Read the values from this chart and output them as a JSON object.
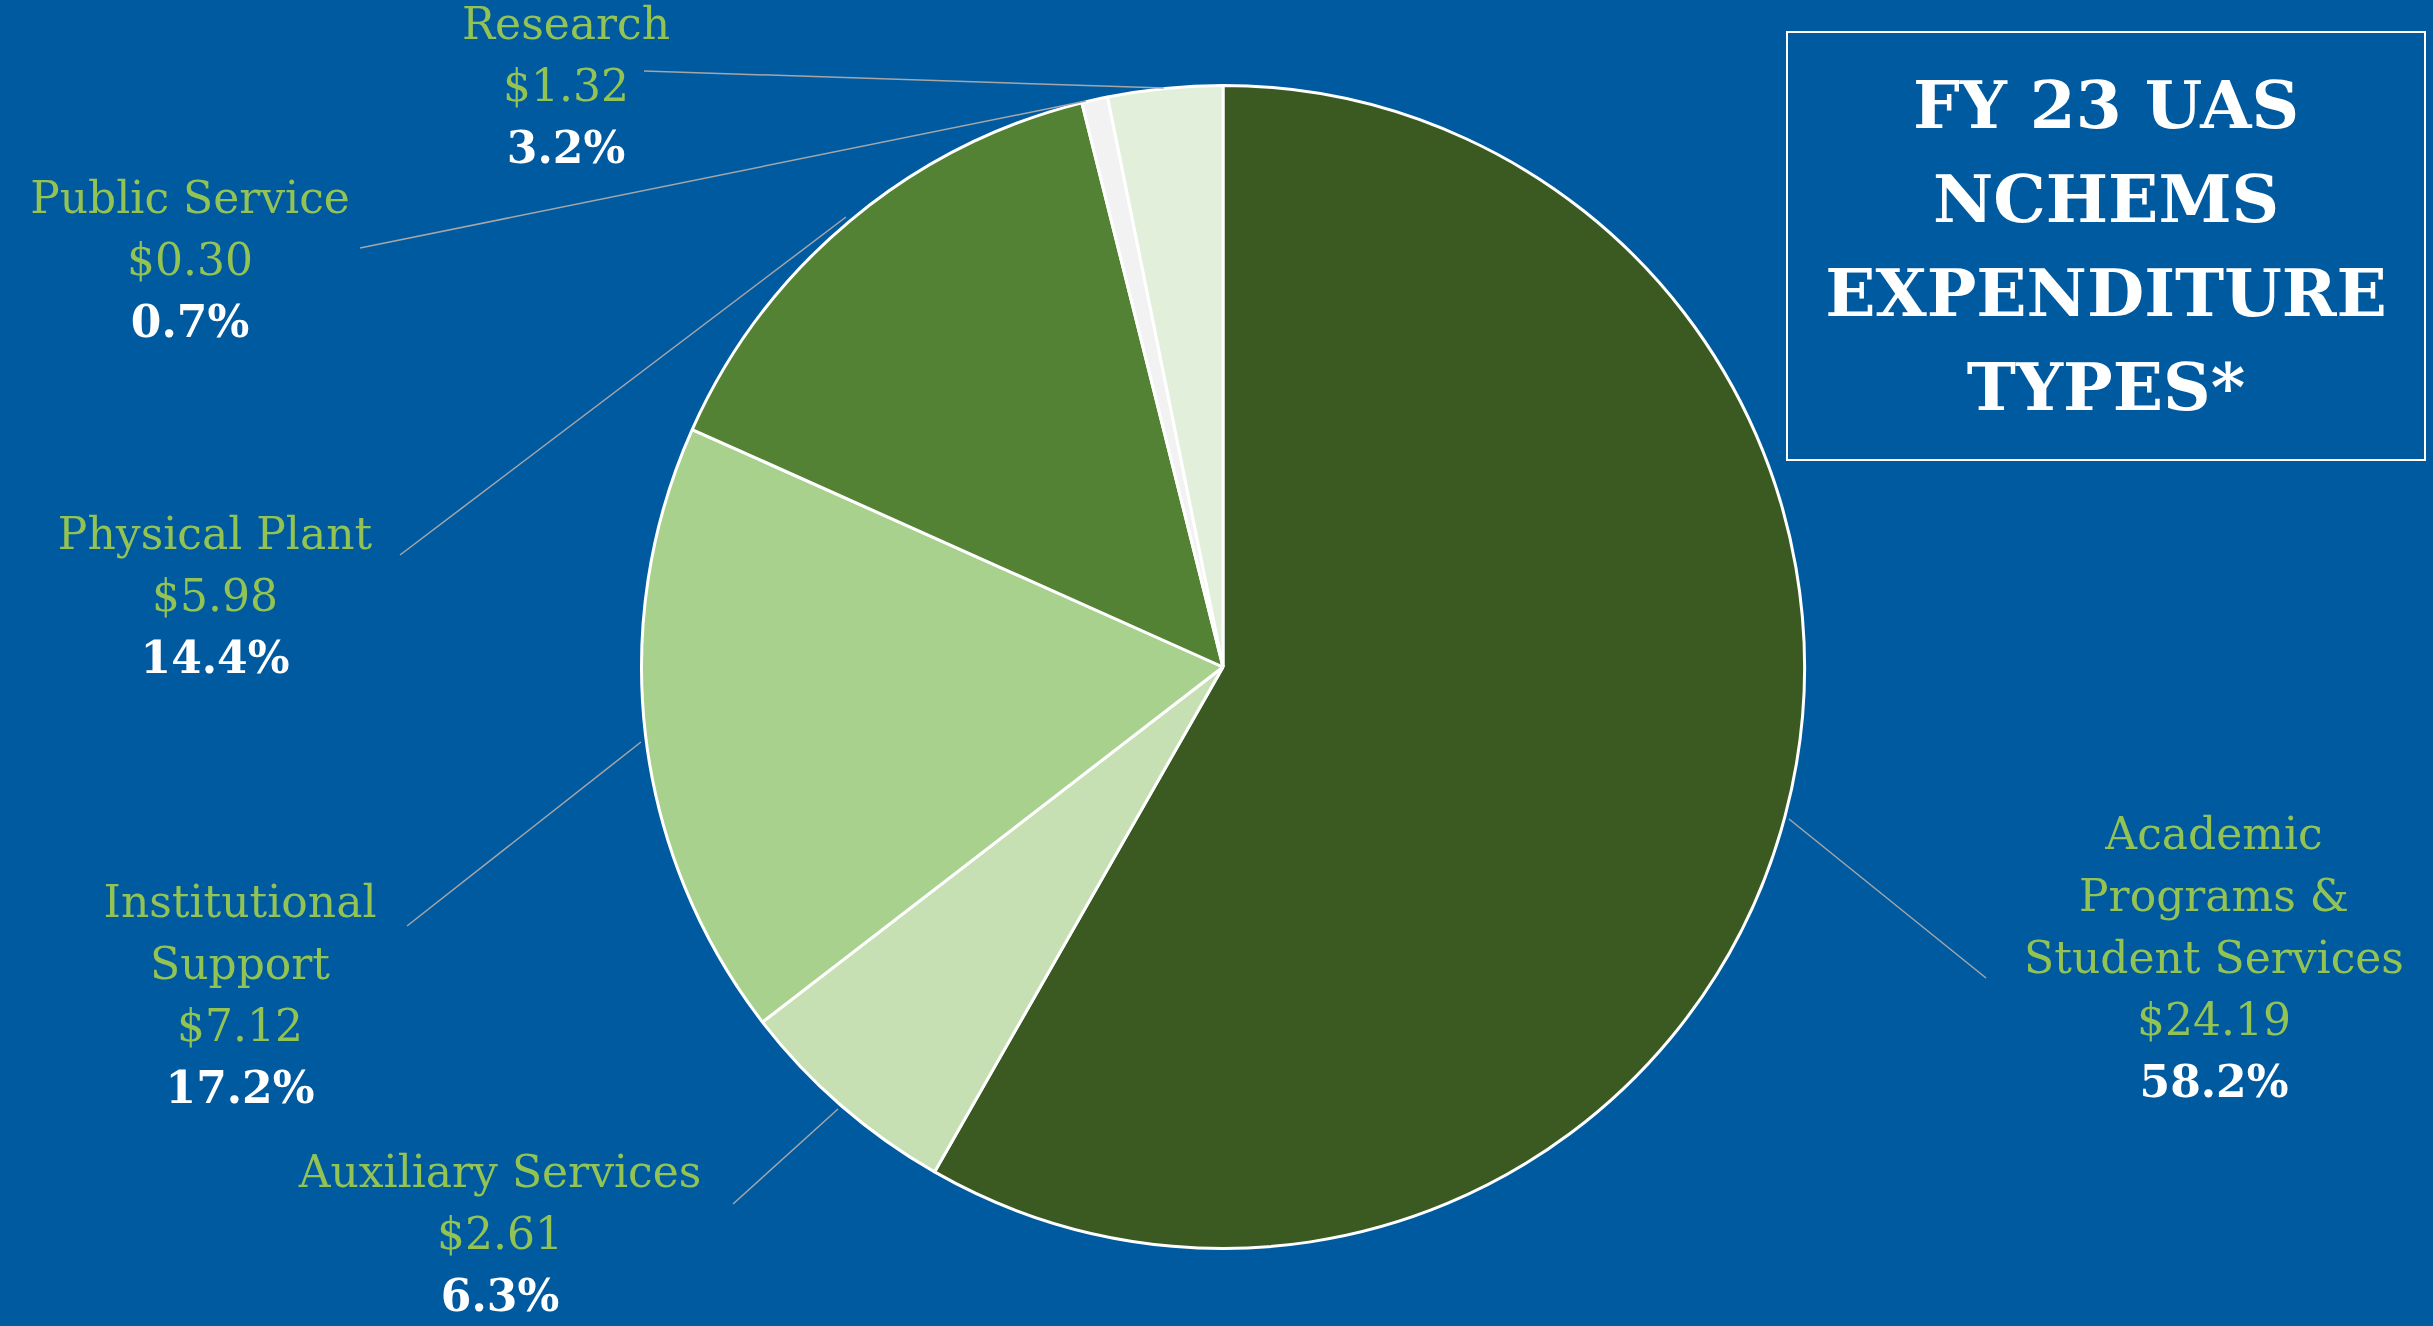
{
  "chart_data": {
    "type": "pie",
    "title": "FY 23 UAS NCHEMS EXPENDITURE TYPES*",
    "categories": [
      "Academic Programs & Student Services",
      "Auxiliary Services",
      "Institutional Support",
      "Physical Plant",
      "Public Service",
      "Research"
    ],
    "values": [
      24.19,
      2.61,
      7.12,
      5.98,
      0.3,
      1.32
    ],
    "colors": [
      "#3a5a22",
      "#c6e0b4",
      "#a9d18e",
      "#548235",
      "#f2f2f2",
      "#e2efda"
    ],
    "value_labels": [
      "$24.19\n58.2%",
      "$2.61\n6.3%",
      "$7.12\n17.2%",
      "$5.98\n14.4%",
      "$0.30\n0.7%",
      "$1.32\n3.2%"
    ]
  }
}
